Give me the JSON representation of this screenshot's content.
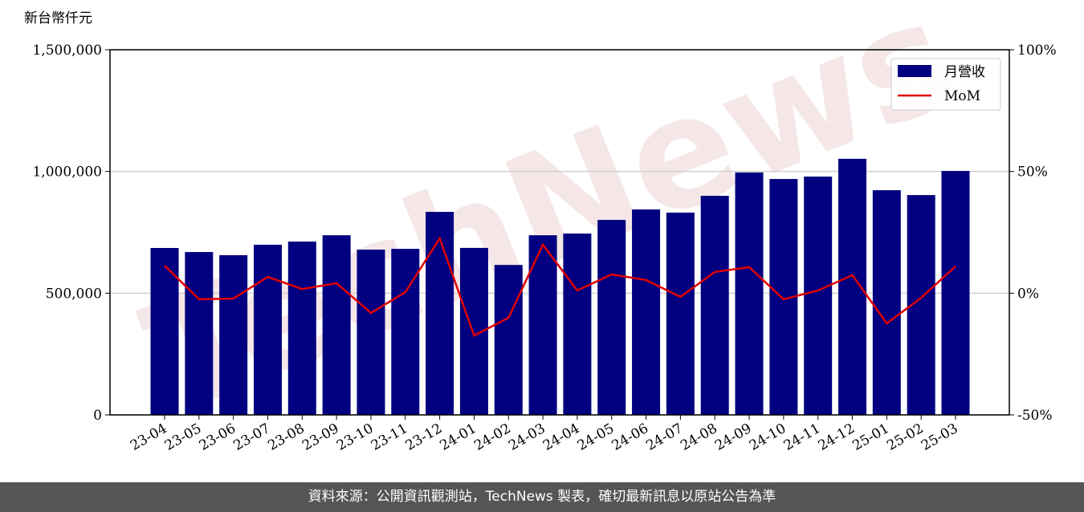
{
  "chart_data": {
    "type": "bar",
    "y_label": "新台幣仟元",
    "watermark": "TechNews",
    "categories": [
      "23-04",
      "23-05",
      "23-06",
      "23-07",
      "23-08",
      "23-09",
      "23-10",
      "23-11",
      "23-12",
      "24-01",
      "24-02",
      "24-03",
      "24-04",
      "24-05",
      "24-06",
      "24-07",
      "24-08",
      "24-09",
      "24-10",
      "24-11",
      "24-12",
      "25-01",
      "25-02",
      "25-03"
    ],
    "series": [
      {
        "name": "月營收",
        "color": "#000080",
        "type": "bar",
        "values": [
          685700,
          669000,
          656000,
          699000,
          712000,
          738000,
          679000,
          682000,
          834000,
          686000,
          616000,
          738000,
          745000,
          801000,
          844000,
          831000,
          900000,
          996000,
          969000,
          979000,
          1052000,
          923000,
          903000,
          1002000
        ]
      },
      {
        "name": "MoM",
        "color": "#e00000",
        "type": "line",
        "axis": "y2",
        "values": [
          11.3,
          -2.5,
          -2.2,
          6.7,
          1.7,
          4.1,
          -8.1,
          0.4,
          22.5,
          -17.4,
          -10.1,
          19.9,
          1.1,
          7.7,
          5.4,
          -1.5,
          8.7,
          10.7,
          -2.5,
          1.1,
          7.4,
          -12.4,
          -1.9,
          11.0
        ]
      }
    ],
    "ylim": [
      0,
      1500000
    ],
    "yticks": [
      0,
      {
        "value": 500000,
        "label": "500,000"
      },
      {
        "value": 1000000,
        "label": "1,000,000"
      },
      {
        "value": 1500000,
        "label": "1,500,000"
      }
    ],
    "y2lim": [
      -50,
      100
    ],
    "y2ticks": [
      {
        "value": -50,
        "label": "-50%"
      },
      {
        "value": 0,
        "label": "0%"
      },
      {
        "value": 50,
        "label": "50%"
      },
      {
        "value": 100,
        "label": "100%"
      }
    ],
    "grid": true,
    "legend": "upper right"
  },
  "footer": "資料來源：公開資訊觀測站，TechNews 製表，確切最新訊息以原站公告為準"
}
